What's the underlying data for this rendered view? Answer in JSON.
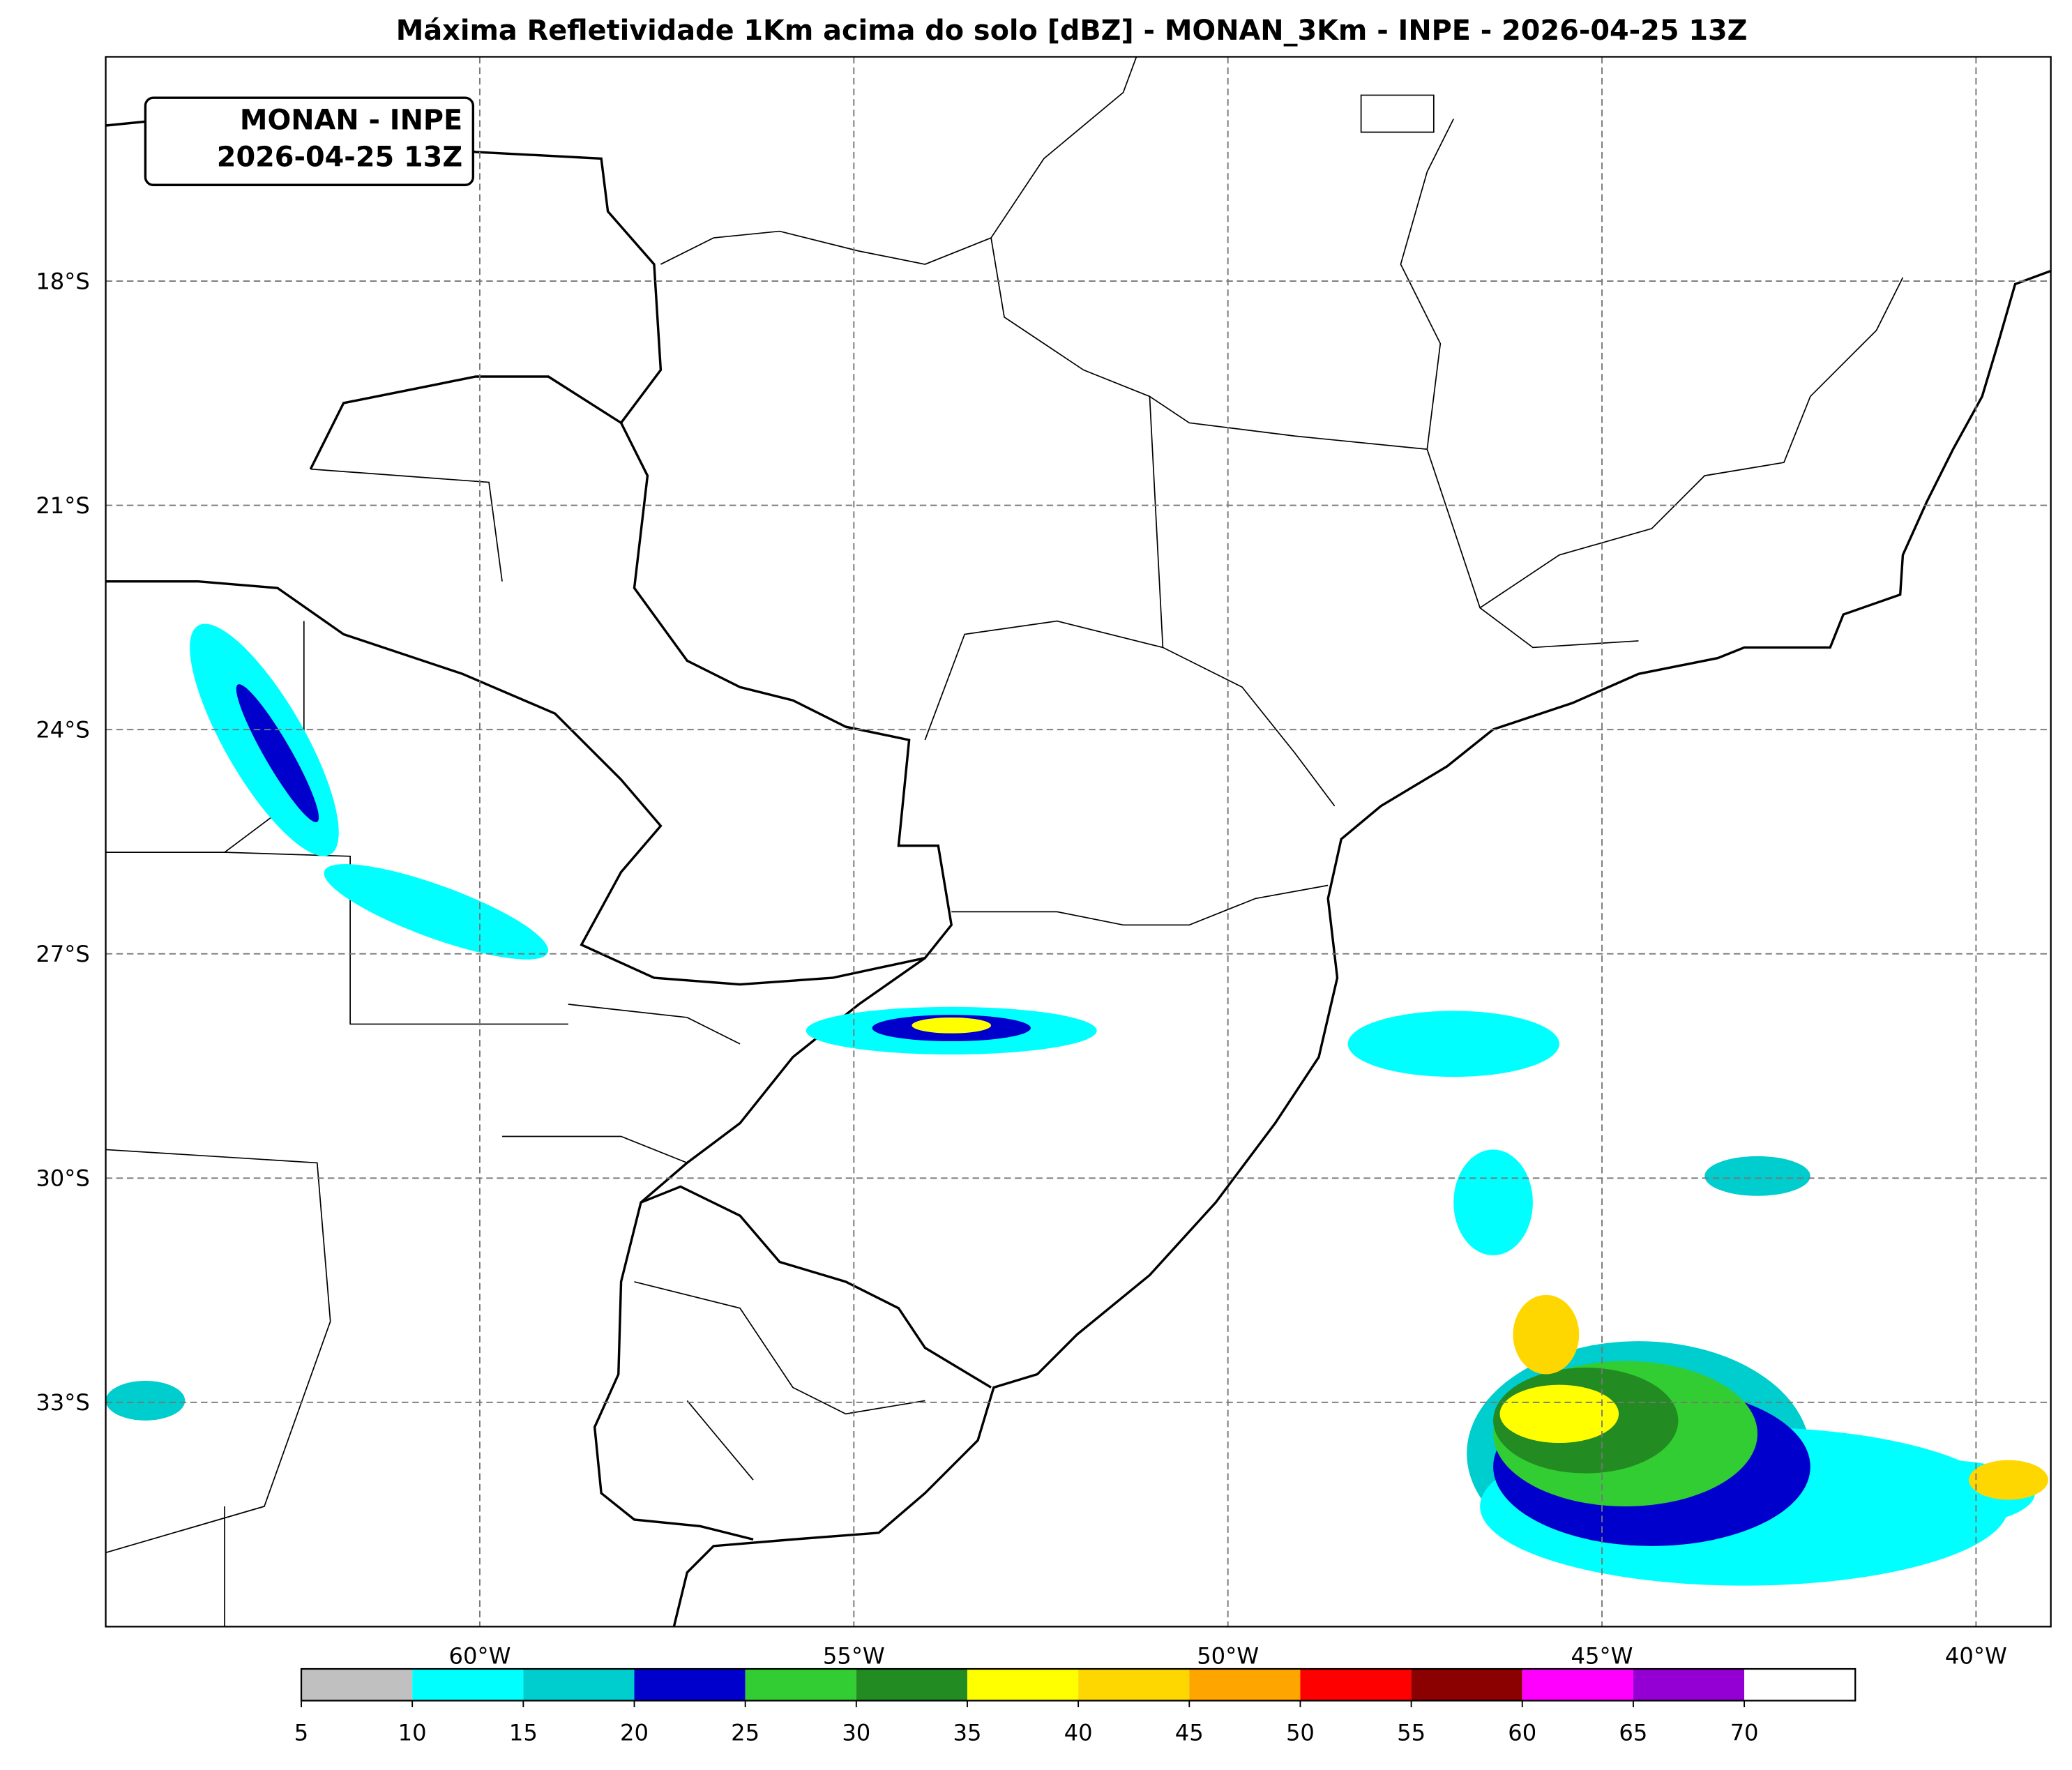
{
  "title": "Máxima Refletividade 1Km acima do solo [dBZ] - MONAN_3Km - INPE - 2026-04-25 13Z",
  "label_box": [
    "MONAN - INPE",
    "2026-04-25 13Z"
  ],
  "map": {
    "lon_range": [
      -65,
      -39
    ],
    "lat_range": [
      -36,
      -15
    ],
    "lat_ticks": [
      {
        "value": -18,
        "label": "18°S"
      },
      {
        "value": -21,
        "label": "21°S"
      },
      {
        "value": -24,
        "label": "24°S"
      },
      {
        "value": -27,
        "label": "27°S"
      },
      {
        "value": -30,
        "label": "30°S"
      },
      {
        "value": -33,
        "label": "33°S"
      }
    ],
    "lon_ticks": [
      {
        "value": -60,
        "label": "60°W"
      },
      {
        "value": -55,
        "label": "55°W"
      },
      {
        "value": -50,
        "label": "50°W"
      },
      {
        "value": -45,
        "label": "45°W"
      },
      {
        "value": -40,
        "label": "40°W"
      }
    ]
  },
  "colorbar": {
    "range": [
      5,
      75
    ],
    "ticks": [
      5,
      10,
      15,
      20,
      25,
      30,
      35,
      40,
      45,
      50,
      55,
      60,
      65,
      70
    ],
    "colors": [
      "#c0c0c0",
      "#00ffff",
      "#00cdcd",
      "#0000cd",
      "#32cd32",
      "#228b22",
      "#ffff00",
      "#ffd700",
      "#ffa500",
      "#ff0000",
      "#8b0000",
      "#ff00ff",
      "#9400d3",
      "#ffffff"
    ]
  }
}
